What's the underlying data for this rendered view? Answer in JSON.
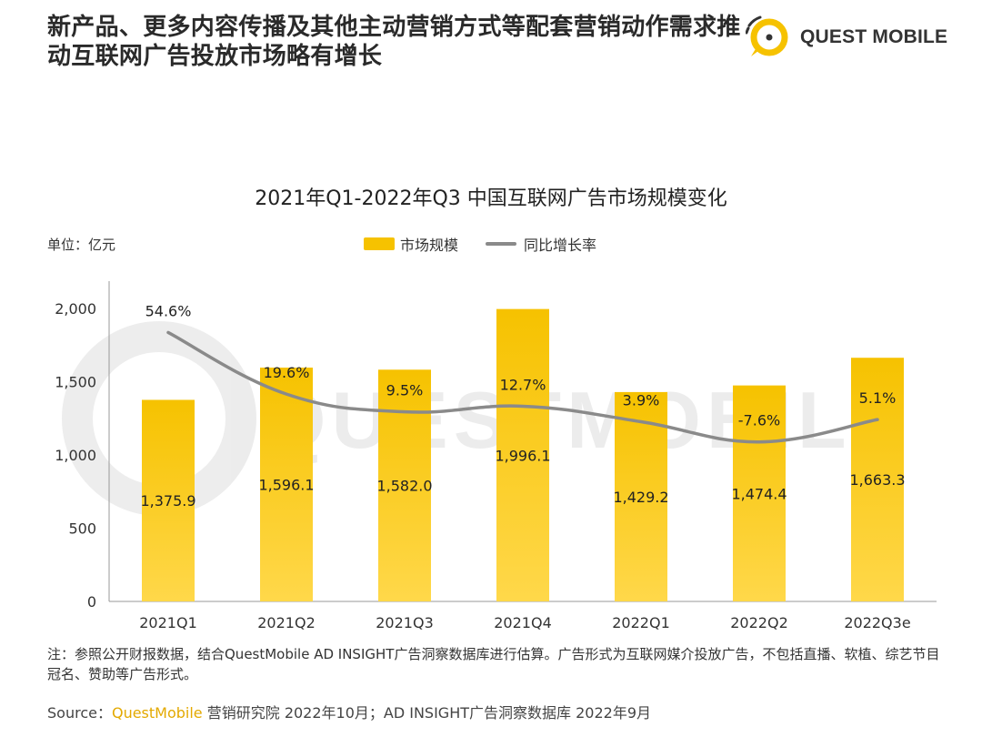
{
  "headline": "新产品、更多内容传播及其他主动营销方式等配套营销动作需求推动互联网广告投放市场略有增长",
  "brand": {
    "name": "QUEST MOBILE",
    "logo_icon": "quest-mobile-logo-icon",
    "watermark": "QUESTMOBILE"
  },
  "colors": {
    "bar": "#f6c200",
    "bar_light": "#ffd84a",
    "line": "#8a8a8a"
  },
  "chart_data": {
    "type": "bar",
    "title": "2021年Q1-2022年Q3 中国互联网广告市场规模变化",
    "unit_label": "单位：亿元",
    "categories": [
      "2021Q1",
      "2021Q2",
      "2021Q3",
      "2021Q4",
      "2022Q1",
      "2022Q2",
      "2022Q3e"
    ],
    "series": [
      {
        "name": "市场规模",
        "type": "bar",
        "values": [
          1375.9,
          1596.1,
          1582.0,
          1996.1,
          1429.2,
          1474.4,
          1663.3
        ],
        "labels": [
          "1,375.9",
          "1,596.1",
          "1,582.0",
          "1,996.1",
          "1,429.2",
          "1,474.4",
          "1,663.3"
        ]
      },
      {
        "name": "同比增长率",
        "type": "line",
        "values": [
          54.6,
          19.6,
          9.5,
          12.7,
          3.9,
          -7.6,
          5.1
        ],
        "labels": [
          "54.6%",
          "19.6%",
          "9.5%",
          "12.7%",
          "3.9%",
          "-7.6%",
          "5.1%"
        ]
      }
    ],
    "ylim": [
      0,
      2000
    ],
    "yticks": [
      0,
      500,
      1000,
      1500,
      2000
    ],
    "ytick_labels": [
      "0",
      "500",
      "1,000",
      "1,500",
      "2,000"
    ],
    "legend_position": "top-center",
    "grid": false
  },
  "note": "注：参照公开财报数据，结合QuestMobile AD INSIGHT广告洞察数据库进行估算。广告形式为互联网媒介投放广告，不包括直播、软植、综艺节目冠名、赞助等广告形式。",
  "source": {
    "prefix": "Source：",
    "brand": "QuestMobile",
    "rest": " 营销研究院 2022年10月；AD INSIGHT广告洞察数据库 2022年9月"
  }
}
